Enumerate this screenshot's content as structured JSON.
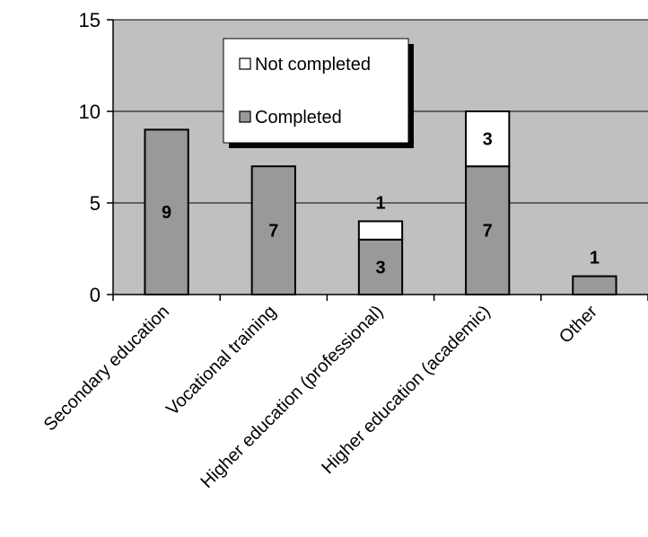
{
  "chart_data": {
    "type": "bar",
    "stacked": true,
    "categories": [
      "Secondary education",
      "Vocational training",
      "Higher education (professional)",
      "Higher education (academic)",
      "Other"
    ],
    "series": [
      {
        "name": "Completed",
        "values": [
          9,
          7,
          3,
          7,
          1
        ],
        "labels": [
          "9",
          "7",
          "3",
          "7",
          "1"
        ],
        "color": "#999999"
      },
      {
        "name": "Not completed",
        "values": [
          0,
          0,
          1,
          3,
          0
        ],
        "labels": [
          "",
          "",
          "1",
          "3",
          ""
        ],
        "color": "#ffffff"
      }
    ],
    "y_ticks": [
      "0",
      "5",
      "10",
      "15"
    ],
    "ylim": [
      0,
      15
    ],
    "grid": true,
    "plot_background": "#c0c0c0",
    "legend": {
      "position": "top-center",
      "items": [
        "Not completed",
        "Completed"
      ]
    }
  }
}
